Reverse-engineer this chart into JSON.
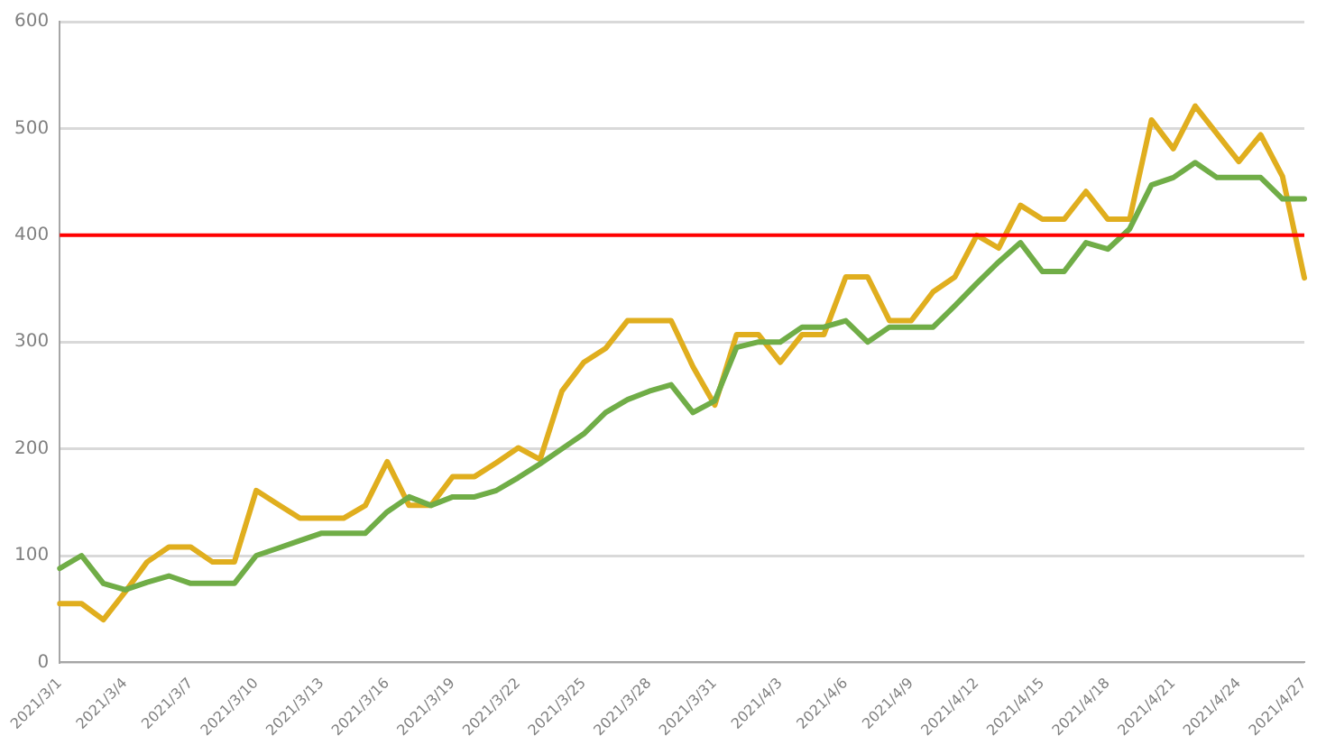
{
  "chart_data": {
    "type": "line",
    "categories": [
      "2021/3/1",
      null,
      null,
      "2021/3/4",
      null,
      null,
      "2021/3/7",
      null,
      null,
      "2021/3/10",
      null,
      null,
      "2021/3/13",
      null,
      null,
      "2021/3/16",
      null,
      null,
      "2021/3/19",
      null,
      null,
      "2021/3/22",
      null,
      null,
      "2021/3/25",
      null,
      null,
      "2021/3/28",
      null,
      null,
      "2021/3/31",
      null,
      null,
      "2021/4/3",
      null,
      null,
      "2021/4/6",
      null,
      null,
      "2021/4/9",
      null,
      null,
      "2021/4/12",
      null,
      null,
      "2021/4/15",
      null,
      null,
      "2021/4/18",
      null,
      null,
      "2021/4/21",
      null,
      null,
      "2021/4/24",
      null,
      null,
      "2021/4/27"
    ],
    "series": [
      {
        "color": "#70ad47",
        "values": [
          88,
          100,
          74,
          68,
          75,
          81,
          74,
          74,
          74,
          100,
          107,
          114,
          121,
          121,
          121,
          141,
          155,
          147,
          155,
          155,
          161,
          173,
          186,
          200,
          214,
          234,
          246,
          254,
          260,
          234,
          245,
          295,
          300,
          300,
          314,
          314,
          320,
          300,
          314,
          314,
          314,
          334,
          355,
          375,
          393,
          366,
          366,
          393,
          387,
          406,
          447,
          454,
          468,
          454,
          454,
          454,
          434,
          434
        ]
      },
      {
        "color": "#e0ae1e",
        "values": [
          55,
          55,
          40,
          66,
          94,
          108,
          108,
          94,
          94,
          161,
          148,
          135,
          135,
          135,
          147,
          188,
          147,
          147,
          174,
          174,
          187,
          201,
          190,
          254,
          281,
          294,
          320,
          320,
          320,
          277,
          241,
          307,
          307,
          281,
          307,
          307,
          361,
          361,
          320,
          320,
          347,
          361,
          400,
          388,
          428,
          415,
          415,
          441,
          415,
          415,
          508,
          481,
          521,
          495,
          469,
          494,
          455,
          360
        ]
      }
    ],
    "ylim": [
      0,
      600
    ],
    "yticks": [
      0,
      100,
      200,
      300,
      400,
      500,
      600
    ],
    "grid": "y",
    "legend": false,
    "marker": "none",
    "line_style": "solid",
    "ref_lines": [
      {
        "axis": "y",
        "value": 400,
        "color": "#ff0000"
      }
    ]
  }
}
